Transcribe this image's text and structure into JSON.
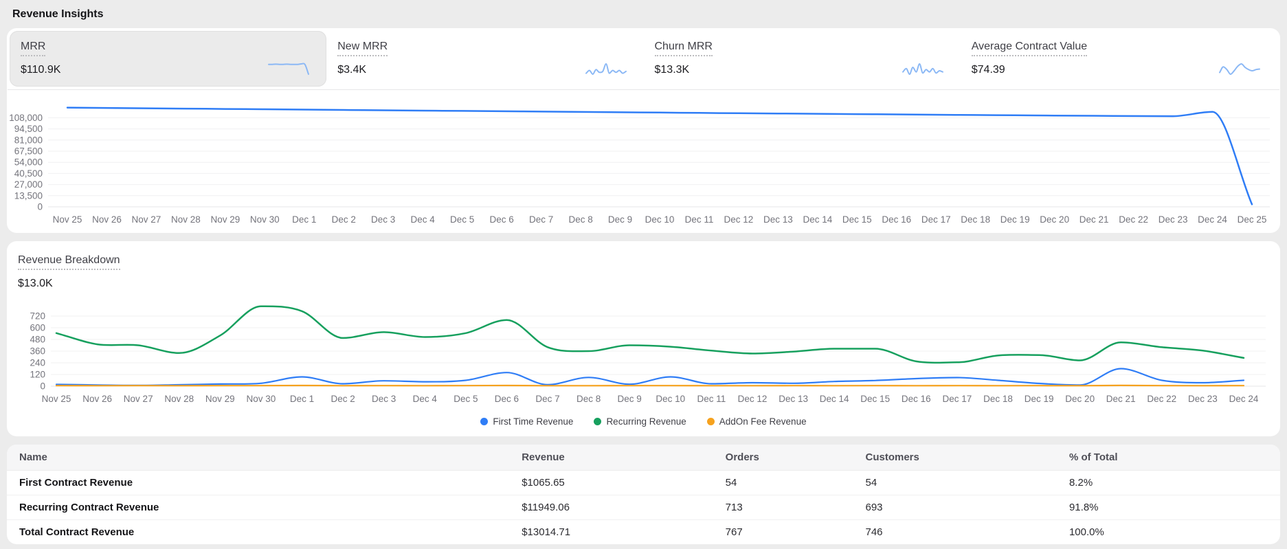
{
  "page": {
    "title": "Revenue Insights"
  },
  "colors": {
    "page_bg": "#ececec",
    "accent_blue": "#2f7df6",
    "sparkline_blue": "#8bb8f5",
    "green": "#17a05e",
    "orange": "#f6a21e",
    "grid": "#f0f0f2"
  },
  "kpis": [
    {
      "label": "MRR",
      "value": "$110.9K",
      "selected": true,
      "spark": [
        6,
        6,
        6.1,
        6,
        6,
        6.1,
        6,
        6,
        6,
        6.2,
        6,
        2
      ]
    },
    {
      "label": "New MRR",
      "value": "$3.4K",
      "selected": false,
      "spark": [
        3,
        4.5,
        2.5,
        5,
        3.5,
        4,
        8,
        3,
        4.5,
        3.5,
        4.5,
        3,
        4
      ]
    },
    {
      "label": "Churn MRR",
      "value": "$13.3K",
      "selected": false,
      "spark": [
        4,
        5.5,
        3,
        6,
        4,
        7.5,
        3.5,
        5,
        4,
        5.5,
        3.5,
        4.5,
        4
      ]
    },
    {
      "label": "Average Contract Value",
      "value": "$74.39",
      "selected": false,
      "spark": [
        4.5,
        5.5,
        5,
        4.2,
        4.8,
        5.6,
        6,
        5.4,
        5,
        4.8,
        5,
        5.1
      ]
    }
  ],
  "breakdown": {
    "title": "Revenue Breakdown",
    "value": "$13.0K"
  },
  "chart_data": [
    {
      "type": "line",
      "title": "MRR",
      "x": [
        "Nov 25",
        "Nov 26",
        "Nov 27",
        "Nov 28",
        "Nov 29",
        "Nov 30",
        "Dec 1",
        "Dec 2",
        "Dec 3",
        "Dec 4",
        "Dec 5",
        "Dec 6",
        "Dec 7",
        "Dec 8",
        "Dec 9",
        "Dec 10",
        "Dec 11",
        "Dec 12",
        "Dec 13",
        "Dec 14",
        "Dec 15",
        "Dec 16",
        "Dec 17",
        "Dec 18",
        "Dec 19",
        "Dec 20",
        "Dec 21",
        "Dec 22",
        "Dec 23",
        "Dec 24",
        "Dec 25"
      ],
      "series": [
        {
          "name": "MRR",
          "color": "#2f7df6",
          "width": 2.5,
          "values": [
            120300,
            119900,
            119500,
            119100,
            118700,
            118300,
            117900,
            117500,
            117100,
            116700,
            116300,
            115900,
            115500,
            115100,
            114700,
            114300,
            113900,
            113500,
            113200,
            112800,
            112400,
            112100,
            111700,
            111300,
            111000,
            110700,
            110400,
            110100,
            109900,
            115200,
            3000
          ]
        }
      ],
      "yticks": [
        0,
        13500,
        27000,
        40500,
        54000,
        67500,
        81000,
        94500,
        108000
      ],
      "ytick_labels": [
        "0",
        "13,500",
        "27,000",
        "40,500",
        "54,000",
        "67,500",
        "81,000",
        "94,500",
        "108,000"
      ],
      "ylim": [
        0,
        135000
      ],
      "grid": true,
      "legend_position": "none"
    },
    {
      "type": "line",
      "title": "Revenue Breakdown",
      "x": [
        "Nov 25",
        "Nov 26",
        "Nov 27",
        "Nov 28",
        "Nov 29",
        "Nov 30",
        "Dec 1",
        "Dec 2",
        "Dec 3",
        "Dec 4",
        "Dec 5",
        "Dec 6",
        "Dec 7",
        "Dec 8",
        "Dec 9",
        "Dec 10",
        "Dec 11",
        "Dec 12",
        "Dec 13",
        "Dec 14",
        "Dec 15",
        "Dec 16",
        "Dec 17",
        "Dec 18",
        "Dec 19",
        "Dec 20",
        "Dec 21",
        "Dec 22",
        "Dec 23",
        "Dec 24"
      ],
      "series": [
        {
          "name": "First Time Revenue",
          "color": "#2f7df6",
          "width": 2.2,
          "values": [
            18,
            12,
            8,
            14,
            22,
            30,
            95,
            25,
            55,
            45,
            60,
            140,
            15,
            90,
            20,
            95,
            25,
            35,
            30,
            48,
            58,
            78,
            88,
            60,
            28,
            12,
            180,
            60,
            35,
            60
          ]
        },
        {
          "name": "Recurring Revenue",
          "color": "#17a05e",
          "width": 2.5,
          "values": [
            545,
            430,
            420,
            340,
            520,
            820,
            770,
            495,
            555,
            505,
            545,
            680,
            400,
            360,
            420,
            405,
            365,
            335,
            355,
            385,
            385,
            255,
            245,
            315,
            320,
            265,
            450,
            400,
            365,
            290
          ]
        },
        {
          "name": "AddOn Fee Revenue",
          "color": "#f6a21e",
          "width": 2.2,
          "values": [
            6,
            5,
            6,
            5,
            6,
            6,
            7,
            5,
            6,
            5,
            6,
            7,
            5,
            5,
            6,
            6,
            5,
            5,
            6,
            5,
            6,
            5,
            6,
            5,
            6,
            5,
            8,
            6,
            5,
            6
          ]
        }
      ],
      "yticks": [
        0,
        120,
        240,
        360,
        480,
        600,
        720
      ],
      "ytick_labels": [
        "0",
        "120",
        "240",
        "360",
        "480",
        "600",
        "720"
      ],
      "ylim": [
        0,
        840
      ],
      "grid": true,
      "legend_position": "bottom"
    }
  ],
  "table": {
    "columns": [
      "Name",
      "Revenue",
      "Orders",
      "Customers",
      "% of Total"
    ],
    "rows": [
      [
        "First Contract Revenue",
        "$1065.65",
        "54",
        "54",
        "8.2%"
      ],
      [
        "Recurring Contract Revenue",
        "$11949.06",
        "713",
        "693",
        "91.8%"
      ],
      [
        "Total Contract Revenue",
        "$13014.71",
        "767",
        "746",
        "100.0%"
      ]
    ]
  }
}
